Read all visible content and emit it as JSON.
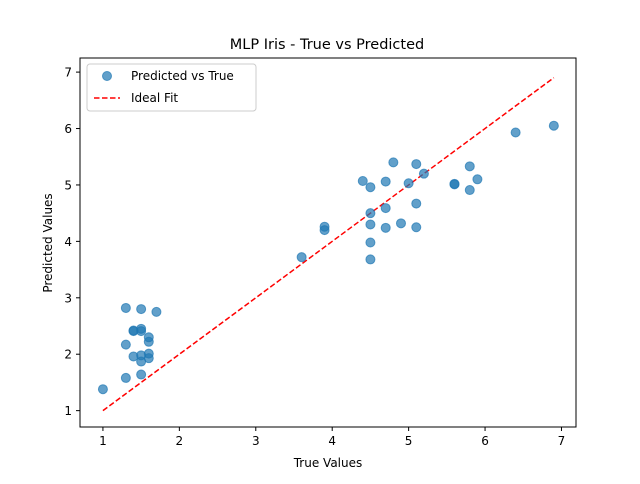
{
  "chart_data": {
    "type": "scatter",
    "title": "MLP Iris - True vs Predicted",
    "xlabel": "True Values",
    "ylabel": "Predicted Values",
    "xlim": [
      0.7,
      7.19
    ],
    "ylim": [
      0.71,
      7.25
    ],
    "xticks": [
      1,
      2,
      3,
      4,
      5,
      6,
      7
    ],
    "yticks": [
      1,
      2,
      3,
      4,
      5,
      6,
      7
    ],
    "grid": false,
    "legend_position": "top-left",
    "colors": {
      "points": "#1f77b4",
      "ideal": "#ff0000"
    },
    "series": [
      {
        "name": "Predicted vs True",
        "type": "scatter",
        "points": [
          [
            1.0,
            1.38
          ],
          [
            1.3,
            1.58
          ],
          [
            1.3,
            2.17
          ],
          [
            1.3,
            2.82
          ],
          [
            1.4,
            1.96
          ],
          [
            1.4,
            2.42
          ],
          [
            1.4,
            2.41
          ],
          [
            1.5,
            1.64
          ],
          [
            1.5,
            1.87
          ],
          [
            1.5,
            1.98
          ],
          [
            1.5,
            2.41
          ],
          [
            1.5,
            2.45
          ],
          [
            1.5,
            2.8
          ],
          [
            1.6,
            1.93
          ],
          [
            1.6,
            2.01
          ],
          [
            1.6,
            2.22
          ],
          [
            1.6,
            2.3
          ],
          [
            1.7,
            2.75
          ],
          [
            3.6,
            3.72
          ],
          [
            3.9,
            4.2
          ],
          [
            3.9,
            4.26
          ],
          [
            4.4,
            5.07
          ],
          [
            4.5,
            3.68
          ],
          [
            4.5,
            3.98
          ],
          [
            4.5,
            4.3
          ],
          [
            4.5,
            4.5
          ],
          [
            4.5,
            4.96
          ],
          [
            4.7,
            4.24
          ],
          [
            4.7,
            4.59
          ],
          [
            4.7,
            5.06
          ],
          [
            4.8,
            5.4
          ],
          [
            4.9,
            4.32
          ],
          [
            5.0,
            5.03
          ],
          [
            5.1,
            4.25
          ],
          [
            5.1,
            4.67
          ],
          [
            5.1,
            5.37
          ],
          [
            5.2,
            5.2
          ],
          [
            5.6,
            5.01
          ],
          [
            5.6,
            5.02
          ],
          [
            5.8,
            4.91
          ],
          [
            5.8,
            5.33
          ],
          [
            5.9,
            5.1
          ],
          [
            6.4,
            5.93
          ],
          [
            6.9,
            6.05
          ]
        ]
      },
      {
        "name": "Ideal Fit",
        "type": "line",
        "style": "dashed",
        "points": [
          [
            1.0,
            1.0
          ],
          [
            6.9,
            6.9
          ]
        ]
      }
    ]
  }
}
